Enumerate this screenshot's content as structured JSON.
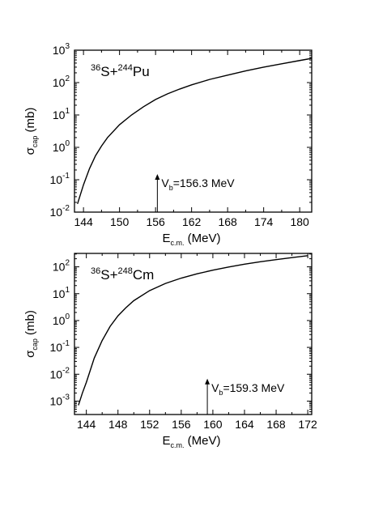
{
  "chart_data": [
    {
      "type": "line",
      "reaction": {
        "a_mass": "36",
        "a_sym": "S",
        "plus": "+",
        "b_mass": "244",
        "b_sym": "Pu"
      },
      "xlabel": {
        "main": "E",
        "sub": "c.m.",
        "unit": " (MeV)"
      },
      "ylabel": {
        "main": "σ",
        "sub": "cap",
        "unit": " (mb)"
      },
      "x_range": [
        142.5,
        182
      ],
      "y_log_range": [
        -2,
        3
      ],
      "yscale": "log",
      "x_ticks": [
        144,
        150,
        156,
        162,
        168,
        174,
        180
      ],
      "y_tick_exponents": [
        -2,
        -1,
        0,
        1,
        2,
        3
      ],
      "y_tick_base": "10",
      "series": [
        {
          "x": [
            143.0,
            144.0,
            145.0,
            146.0,
            147.0,
            148.0,
            150.0,
            152.0,
            154.0,
            156.0,
            158.0,
            160.0,
            162.0,
            165.0,
            168.0,
            171.0,
            174.0,
            177.0,
            180.0,
            182.0
          ],
          "y": [
            0.018,
            0.07,
            0.22,
            0.55,
            1.1,
            2.0,
            5.0,
            10.0,
            18.0,
            30.0,
            45.0,
            63.0,
            85.0,
            125.0,
            170.0,
            230.0,
            300.0,
            380.0,
            480.0,
            560.0
          ]
        }
      ],
      "annotation": {
        "label": "V",
        "sub": "b",
        "text": "=156.3 MeV",
        "x": 156.3,
        "y_from": 0.01,
        "y_to": 0.15
      }
    },
    {
      "type": "line",
      "reaction": {
        "a_mass": "36",
        "a_sym": "S",
        "plus": "+",
        "b_mass": "248",
        "b_sym": "Cm"
      },
      "xlabel": {
        "main": "E",
        "sub": "c.m.",
        "unit": " (MeV)"
      },
      "ylabel": {
        "main": "σ",
        "sub": "cap",
        "unit": " (mb)"
      },
      "x_range": [
        142.5,
        172.5
      ],
      "y_log_range": [
        -3.5,
        2.5
      ],
      "yscale": "log",
      "x_ticks": [
        144,
        148,
        152,
        156,
        160,
        164,
        168,
        172
      ],
      "y_tick_exponents": [
        -3,
        -2,
        -1,
        0,
        1,
        2
      ],
      "y_tick_base": "10",
      "series": [
        {
          "x": [
            143.0,
            143.5,
            144.0,
            145.0,
            146.0,
            147.0,
            148.0,
            149.0,
            150.0,
            152.0,
            154.0,
            156.0,
            158.0,
            160.0,
            162.0,
            164.0,
            166.0,
            168.0,
            170.0,
            172.0
          ],
          "y": [
            0.0007,
            0.002,
            0.005,
            0.04,
            0.18,
            0.6,
            1.5,
            3.0,
            5.5,
            13.0,
            24.0,
            38.0,
            55.0,
            75.0,
            98.0,
            125.0,
            155.0,
            185.0,
            220.0,
            260.0
          ]
        }
      ],
      "annotation": {
        "label": "V",
        "sub": "b",
        "text": "=159.3 MeV",
        "x": 159.3,
        "y_from": 0.00032,
        "y_to": 0.0068
      }
    }
  ]
}
